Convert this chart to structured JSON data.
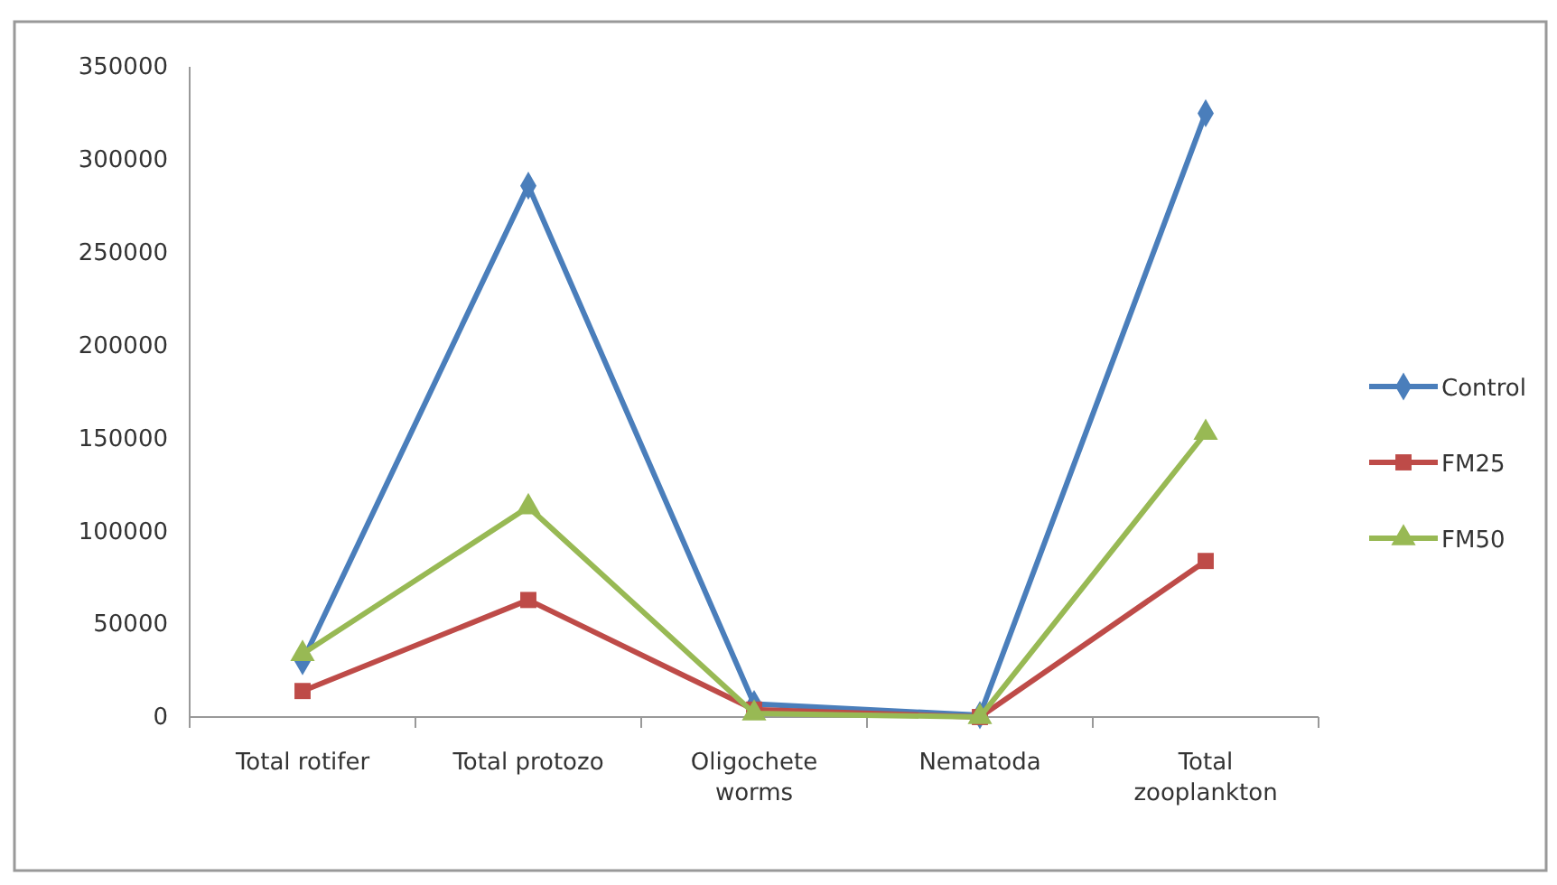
{
  "chart_data": {
    "type": "line",
    "categories": [
      "Total rotifer",
      "Total protozo",
      "Oligochete worms",
      "Nematoda",
      "Total zooplankton"
    ],
    "series": [
      {
        "name": "Control",
        "color": "#4a7ebb",
        "marker": "diamond",
        "values": [
          30000,
          286000,
          7000,
          1000,
          325000
        ]
      },
      {
        "name": "FM25",
        "color": "#be4b48",
        "marker": "square",
        "values": [
          14000,
          63000,
          4000,
          0,
          84000
        ]
      },
      {
        "name": "FM50",
        "color": "#98b954",
        "marker": "triangle",
        "values": [
          34000,
          113000,
          2000,
          0,
          153000
        ]
      }
    ],
    "ylim": [
      0,
      350000
    ],
    "yticks": [
      0,
      50000,
      100000,
      150000,
      200000,
      250000,
      300000,
      350000
    ],
    "grid": false,
    "legend": "right",
    "line_style": "solid"
  }
}
